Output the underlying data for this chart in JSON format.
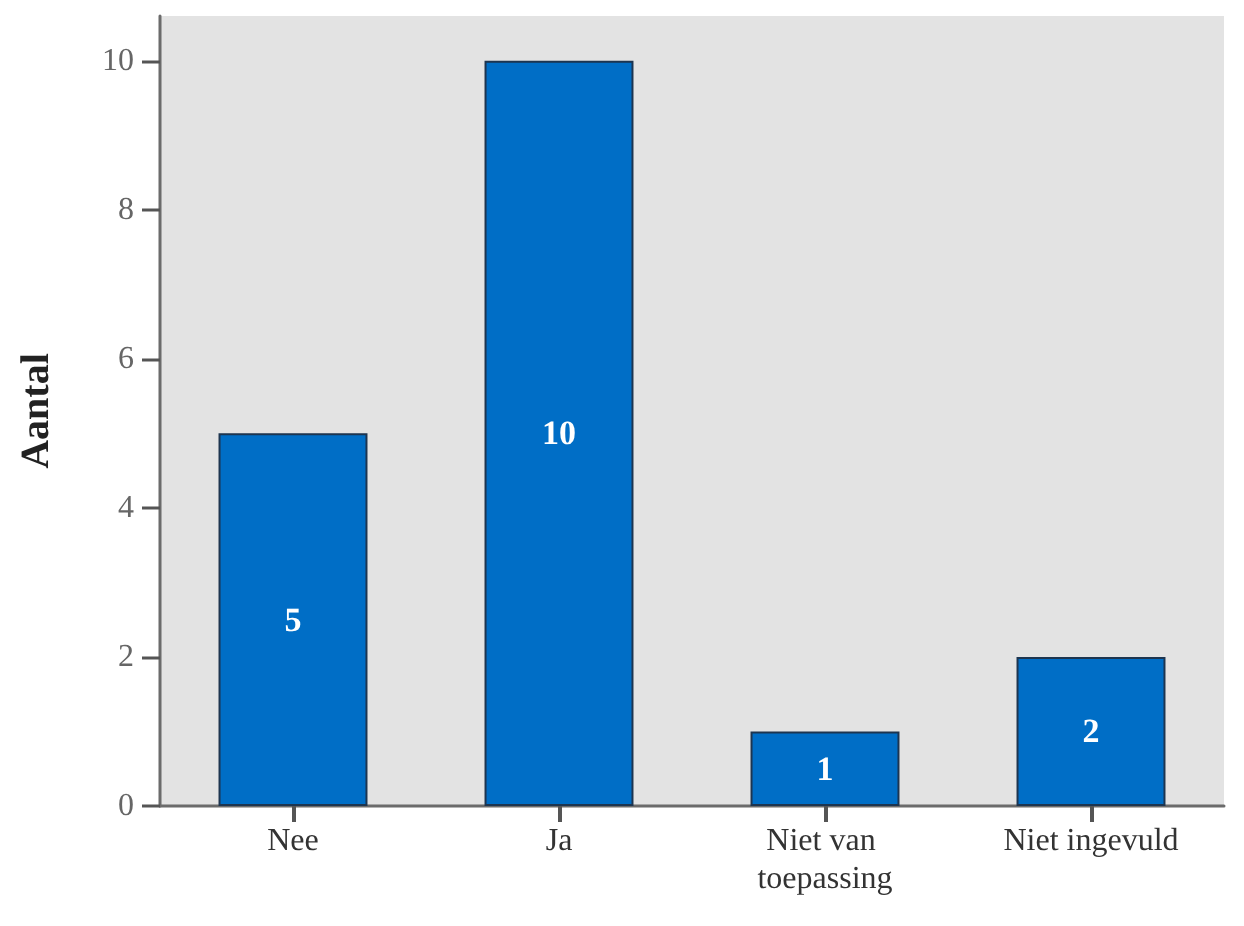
{
  "chart_data": {
    "type": "bar",
    "ylabel": "Aantal",
    "categories": [
      "Nee",
      "Ja",
      "Niet van toepassing",
      "Niet ingevuld"
    ],
    "values": [
      5,
      10,
      1,
      2
    ],
    "color": "#006ec6",
    "ylim": [
      0,
      10.6
    ],
    "yticks": [
      0,
      2,
      4,
      6,
      8,
      10
    ],
    "data_labels": true
  }
}
